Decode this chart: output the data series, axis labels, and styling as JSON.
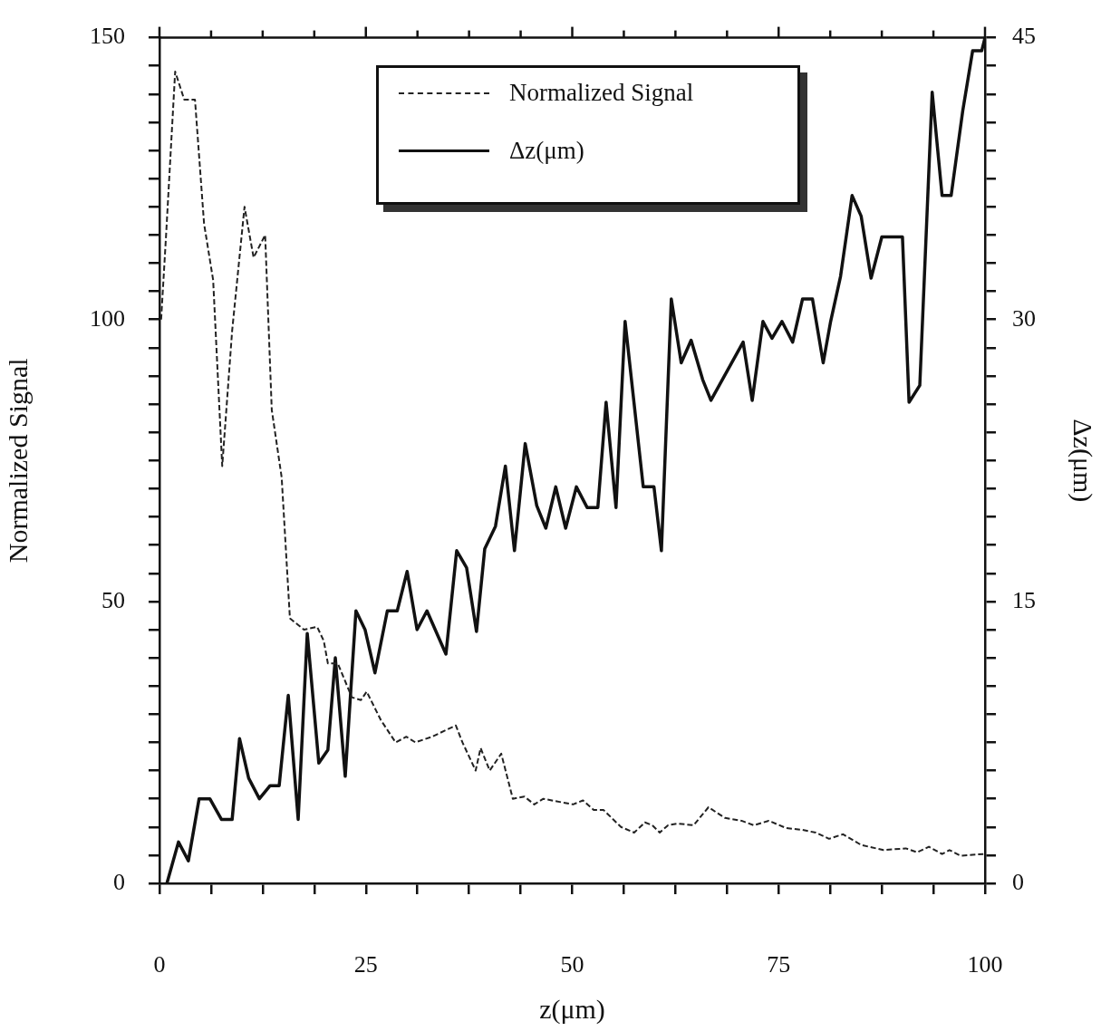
{
  "chart_data": {
    "type": "line",
    "xlabel": "z(μm)",
    "ylabel": "Normalized Signal",
    "y2label": "Δz(μm)",
    "xlim": [
      0,
      100
    ],
    "ylim": [
      0,
      150
    ],
    "y2lim": [
      0,
      45
    ],
    "xticks": [
      0,
      {
        "value": 6.25,
        "label": null
      },
      {
        "value": 12.5,
        "label": null
      },
      {
        "value": 18.75,
        "label": null
      },
      25,
      {
        "value": 31.25,
        "label": null
      },
      {
        "value": 37.5,
        "label": null
      },
      {
        "value": 43.75,
        "label": null
      },
      50,
      {
        "value": 56.25,
        "label": null
      },
      {
        "value": 62.5,
        "label": null
      },
      {
        "value": 68.75,
        "label": null
      },
      75,
      {
        "value": 81.25,
        "label": null
      },
      {
        "value": 87.5,
        "label": null
      },
      {
        "value": 93.75,
        "label": null
      },
      100
    ],
    "yticks": [
      0,
      {
        "value": 5,
        "label": null
      },
      {
        "value": 10,
        "label": null
      },
      {
        "value": 15,
        "label": null
      },
      {
        "value": 20,
        "label": null
      },
      {
        "value": 25,
        "label": null
      },
      {
        "value": 30,
        "label": null
      },
      {
        "value": 35,
        "label": null
      },
      {
        "value": 40,
        "label": null
      },
      {
        "value": 45,
        "label": null
      },
      50,
      {
        "value": 55,
        "label": null
      },
      {
        "value": 60,
        "label": null
      },
      {
        "value": 65,
        "label": null
      },
      {
        "value": 70,
        "label": null
      },
      {
        "value": 75,
        "label": null
      },
      {
        "value": 80,
        "label": null
      },
      {
        "value": 85,
        "label": null
      },
      {
        "value": 90,
        "label": null
      },
      {
        "value": 95,
        "label": null
      },
      100,
      {
        "value": 105,
        "label": null
      },
      {
        "value": 110,
        "label": null
      },
      {
        "value": 115,
        "label": null
      },
      {
        "value": 120,
        "label": null
      },
      {
        "value": 125,
        "label": null
      },
      {
        "value": 130,
        "label": null
      },
      {
        "value": 135,
        "label": null
      },
      {
        "value": 140,
        "label": null
      },
      {
        "value": 145,
        "label": null
      },
      150
    ],
    "y2ticks": [
      0,
      {
        "value": 1.5,
        "label": null
      },
      {
        "value": 3,
        "label": null
      },
      {
        "value": 4.5,
        "label": null
      },
      {
        "value": 6,
        "label": null
      },
      {
        "value": 7.5,
        "label": null
      },
      {
        "value": 9,
        "label": null
      },
      {
        "value": 10.5,
        "label": null
      },
      {
        "value": 12,
        "label": null
      },
      {
        "value": 13.5,
        "label": null
      },
      15,
      {
        "value": 16.5,
        "label": null
      },
      {
        "value": 18,
        "label": null
      },
      {
        "value": 19.5,
        "label": null
      },
      {
        "value": 21,
        "label": null
      },
      {
        "value": 22.5,
        "label": null
      },
      {
        "value": 24,
        "label": null
      },
      {
        "value": 25.5,
        "label": null
      },
      {
        "value": 27,
        "label": null
      },
      {
        "value": 28.5,
        "label": null
      },
      30,
      {
        "value": 31.5,
        "label": null
      },
      {
        "value": 33,
        "label": null
      },
      {
        "value": 34.5,
        "label": null
      },
      {
        "value": 36,
        "label": null
      },
      {
        "value": 37.5,
        "label": null
      },
      {
        "value": 39,
        "label": null
      },
      {
        "value": 40.5,
        "label": null
      },
      {
        "value": 42,
        "label": null
      },
      {
        "value": 43.5,
        "label": null
      },
      45
    ],
    "grid": false,
    "legend": "top",
    "marker": "none",
    "series": [
      {
        "name": "Normalized Signal",
        "color": "#222222",
        "line_style": "dashed",
        "x": [
          0.2,
          0.8,
          1.9,
          3.0,
          4.3,
          5.4,
          6.5,
          7.6,
          8.8,
          10.3,
          11.4,
          12.8,
          13.6,
          14.8,
          15.8,
          17.5,
          19.1,
          19.9,
          20.4,
          21.6,
          23.3,
          24.4,
          25.1,
          26.8,
          28.6,
          29.9,
          31.0,
          33.0,
          35.9,
          36.7,
          38.3,
          38.9,
          40.0,
          41.4,
          42.8,
          44.2,
          45.4,
          46.5,
          47.9,
          50.1,
          51.3,
          52.6,
          53.8,
          55.9,
          57.5,
          58.8,
          59.7,
          60.6,
          61.6,
          62.8,
          64.7,
          66.5,
          68.5,
          70.5,
          72.0,
          73.8,
          75.9,
          77.8,
          79.5,
          81.1,
          82.8,
          85.0,
          87.7,
          90.4,
          91.8,
          93.2,
          94.8,
          95.7,
          97.0,
          99.8
        ],
        "values": [
          100,
          115,
          144,
          139,
          139,
          117,
          107,
          74,
          98,
          120,
          111,
          115,
          84,
          72,
          47,
          45,
          45.5,
          43,
          39,
          39,
          33,
          32.5,
          34,
          29,
          25,
          26,
          25,
          26,
          28,
          25,
          20,
          24,
          20,
          23,
          15,
          15.4,
          14,
          15,
          14.6,
          14,
          14.7,
          13,
          13,
          10,
          9,
          10.8,
          10.3,
          9,
          10.3,
          10.6,
          10.3,
          13.5,
          11.6,
          11.1,
          10.3,
          11.1,
          9.8,
          9.5,
          9,
          7.9,
          8.7,
          6.8,
          5.9,
          6.2,
          5.5,
          6.5,
          5.2,
          5.9,
          4.9,
          5.2
        ]
      },
      {
        "name": "Δz(μm)",
        "color": "#111111",
        "line_style": "solid",
        "axis": "y2",
        "x": [
          0.9,
          2.3,
          3.5,
          4.8,
          6.1,
          7.5,
          8.8,
          9.7,
          10.8,
          12.1,
          13.4,
          14.5,
          15.6,
          16.8,
          17.9,
          19.3,
          20.4,
          21.3,
          22.5,
          23.8,
          24.9,
          26.1,
          27.6,
          28.8,
          30.0,
          31.2,
          32.4,
          34.7,
          36.0,
          37.2,
          38.4,
          39.4,
          40.7,
          41.9,
          43.0,
          44.3,
          45.7,
          46.8,
          48.0,
          49.2,
          50.5,
          51.8,
          53.1,
          54.1,
          55.3,
          56.4,
          58.6,
          59.9,
          60.8,
          62.0,
          63.2,
          64.4,
          65.8,
          66.8,
          70.7,
          71.8,
          73.1,
          74.2,
          75.4,
          76.7,
          77.9,
          79.1,
          80.4,
          81.3,
          82.5,
          83.9,
          85.0,
          86.2,
          87.5,
          90.0,
          90.8,
          92.1,
          93.6,
          94.8,
          95.9,
          97.3,
          98.5,
          99.6,
          100
        ],
        "values": [
          0,
          2.2,
          1.2,
          4.5,
          4.5,
          3.4,
          3.4,
          7.7,
          5.6,
          4.5,
          5.2,
          5.2,
          10,
          3.4,
          13.3,
          6.4,
          7.1,
          12,
          5.7,
          14.5,
          13.5,
          11.2,
          14.5,
          14.5,
          16.6,
          13.5,
          14.5,
          12.2,
          17.7,
          16.8,
          13.4,
          17.8,
          19,
          22.2,
          17.7,
          23.4,
          20.1,
          18.9,
          21.1,
          18.9,
          21.1,
          20,
          20,
          25.6,
          20,
          29.9,
          21.1,
          21.1,
          17.7,
          31.1,
          27.7,
          28.9,
          26.8,
          25.7,
          28.8,
          25.7,
          29.9,
          29,
          29.9,
          28.8,
          31.1,
          31.1,
          27.7,
          29.9,
          32.3,
          36.6,
          35.5,
          32.2,
          34.4,
          34.4,
          25.6,
          26.5,
          42.1,
          36.6,
          36.6,
          41.1,
          44.3,
          44.3,
          45
        ]
      }
    ]
  }
}
